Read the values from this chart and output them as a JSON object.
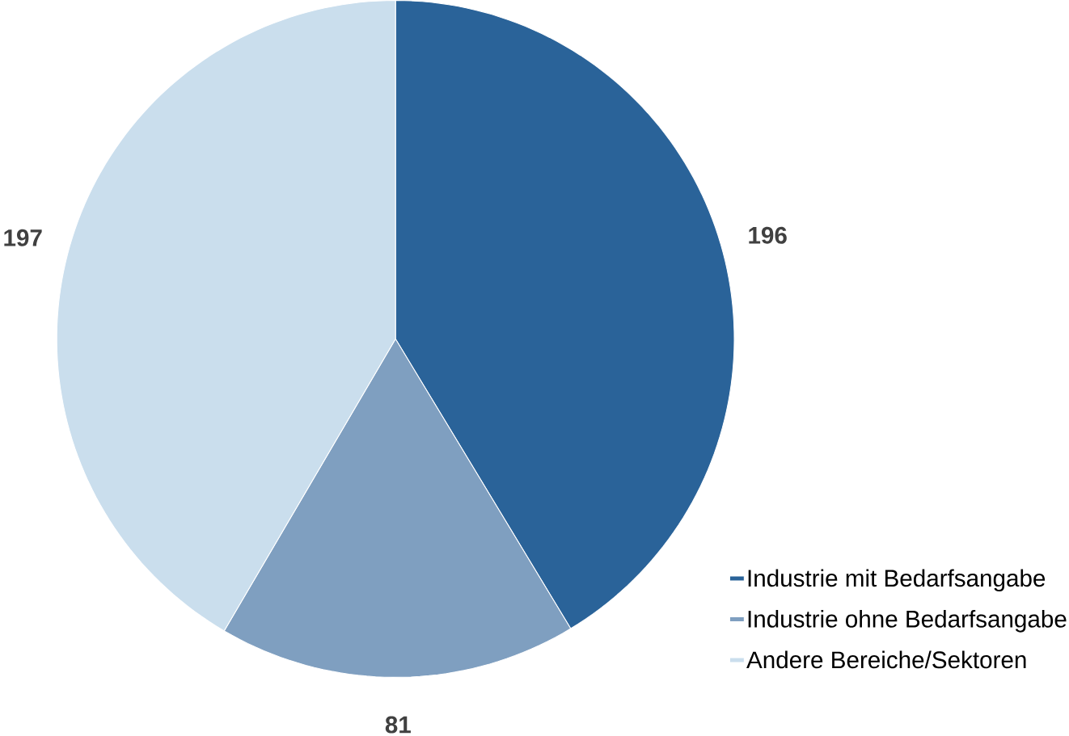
{
  "chart_data": {
    "type": "pie",
    "categories": [
      "Industrie mit Bedarfsangabe",
      "Industrie ohne Bedarfsangabe",
      "Andere Bereiche/Sektoren"
    ],
    "values": [
      196,
      81,
      197
    ],
    "colors": [
      "#2a6399",
      "#7f9fc0",
      "#cadeed"
    ],
    "data_labels": true,
    "legend": "bottom right"
  }
}
